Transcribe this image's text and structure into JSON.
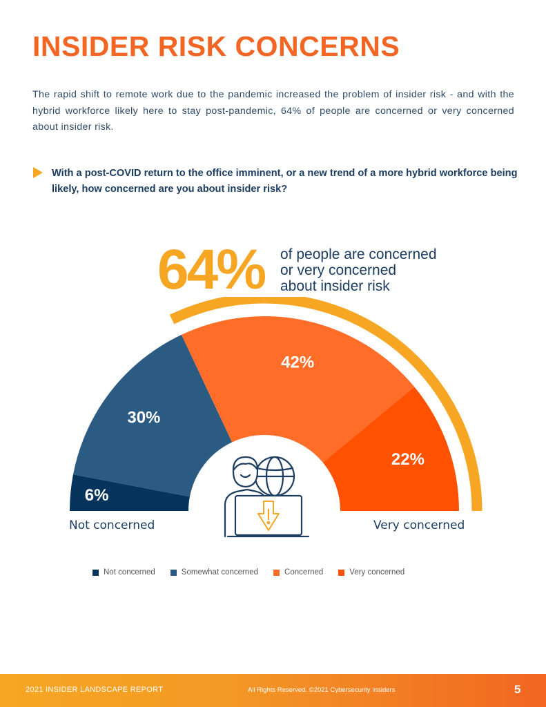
{
  "page": {
    "title": "INSIDER RISK CONCERNS",
    "intro": "The rapid shift to remote work due to the pandemic increased the problem of insider risk - and with the hybrid workforce likely here to stay post-pandemic, 64% of people are concerned or very concerned about insider risk.",
    "question": "With a post-COVID return to the office imminent, or a new trend of a more hybrid workforce being likely, how concerned are you about insider risk?",
    "highlight": {
      "value": "64%",
      "lines": [
        "of people are concerned",
        "or very concerned",
        "about insider risk"
      ]
    }
  },
  "chart_data": {
    "type": "pie",
    "variant": "half-donut gauge",
    "categories": [
      "Not concerned",
      "Somewhat concerned",
      "Concerned",
      "Very concerned"
    ],
    "values": [
      6,
      30,
      42,
      22
    ],
    "value_labels": [
      "6%",
      "30%",
      "42%",
      "22%"
    ],
    "colors": [
      "#06345c",
      "#2b5a82",
      "#ff6d29",
      "#ff5100"
    ],
    "axis_left_label": "Not concerned",
    "axis_right_label": "Very concerned",
    "highlight_arc": {
      "covers": [
        "Concerned",
        "Very concerned"
      ],
      "value": 64,
      "color": "#f6a623"
    },
    "legend": [
      {
        "label": "Not concerned",
        "color": "#06345c"
      },
      {
        "label": "Somewhat concerned",
        "color": "#2b5a82"
      },
      {
        "label": "Concerned",
        "color": "#ff6d29"
      },
      {
        "label": "Very concerned",
        "color": "#ff5100"
      }
    ],
    "legend_position": "bottom"
  },
  "icon": {
    "name": "person-laptop-globe-warning-icon"
  },
  "footer": {
    "report": "2021 INSIDER LANDSCAPE REPORT",
    "rights": "All Rights Reserved. ©2021 Cybersecurity Insiders",
    "page_number": "5"
  }
}
